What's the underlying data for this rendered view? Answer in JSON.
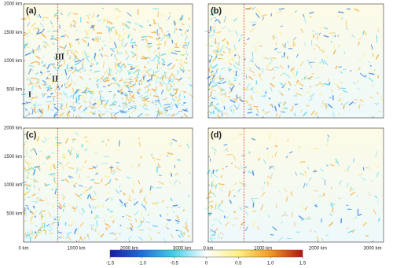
{
  "panels": [
    {
      "label": "(a)",
      "annotations": [
        "III",
        "II",
        "I"
      ]
    },
    {
      "label": "(b)"
    },
    {
      "label": "(c)"
    },
    {
      "label": "(d)"
    }
  ],
  "y_axis": {
    "range": [
      0,
      2000
    ],
    "ticks": [
      {
        "value": 500,
        "label": "500 km"
      },
      {
        "value": 1000,
        "label": "1000 km"
      },
      {
        "value": 1500,
        "label": "1500 km"
      },
      {
        "value": 2000,
        "label": "2000 km"
      }
    ]
  },
  "x_axis": {
    "range": [
      0,
      3200
    ],
    "ticks": [
      {
        "value": 0,
        "label": "0 km"
      },
      {
        "value": 1000,
        "label": "1000 km"
      },
      {
        "value": 2000,
        "label": "2000 km"
      },
      {
        "value": 3000,
        "label": "3000 km"
      }
    ]
  },
  "colorbar": {
    "range": [
      -1.5,
      1.5
    ],
    "ticks": [
      {
        "value": -1.5,
        "label": "-1.5"
      },
      {
        "value": -1.0,
        "label": "-1.0"
      },
      {
        "value": -0.5,
        "label": "-0.5"
      },
      {
        "value": 0,
        "label": "0"
      },
      {
        "value": 0.5,
        "label": "0.5"
      },
      {
        "value": 1.0,
        "label": "1.0"
      },
      {
        "value": 1.5,
        "label": "1.5"
      }
    ]
  }
}
